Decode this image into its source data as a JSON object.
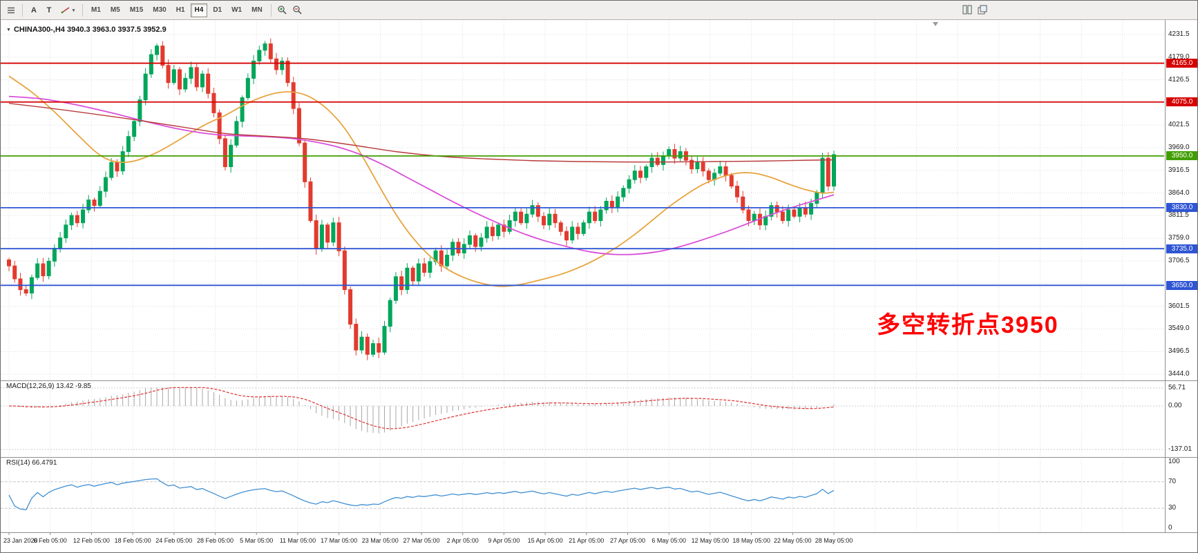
{
  "toolbar": {
    "text_tool_a": "A",
    "text_tool_t": "T",
    "timeframes": [
      "M1",
      "M5",
      "M15",
      "M30",
      "H1",
      "H4",
      "D1",
      "W1",
      "MN"
    ],
    "active_timeframe": "H4"
  },
  "chart": {
    "symbol": "CHINA300-,H4",
    "ohlc": "3940.3 3963.0 3937.5 3952.9",
    "annotation": "多空转折点3950",
    "annotation_color": "#ff0000"
  },
  "indicators": {
    "macd_label": "MACD(12,26,9) 13.42 -9.85",
    "rsi_label": "RSI(14) 66.4791",
    "macd_axis": [
      "56.71",
      "0.00",
      "-137.01"
    ],
    "rsi_axis": [
      "100",
      "70",
      "30",
      "0"
    ]
  },
  "levels": [
    {
      "price": 4165.0,
      "label": "4165.0",
      "color": "#d60000"
    },
    {
      "price": 4075.0,
      "label": "4075.0",
      "color": "#d60000"
    },
    {
      "price": 3950.0,
      "label": "3950.0",
      "color": "#419e00"
    },
    {
      "price": 3830.0,
      "label": "3830.0",
      "color": "#2f55d4"
    },
    {
      "price": 3735.0,
      "label": "3735.0",
      "color": "#2f55d4"
    },
    {
      "price": 3650.0,
      "label": "3650.0",
      "color": "#2f55d4"
    }
  ],
  "y_axis": {
    "max": 4231.5,
    "step": 52.5,
    "count": 16
  },
  "chart_data": {
    "type": "candlestick",
    "symbol": "CHINA300",
    "timeframe": "H4",
    "dates": [
      "23 Jan 2020",
      "6 Feb 05:00",
      "12 Feb 05:00",
      "18 Feb 05:00",
      "24 Feb 05:00",
      "28 Feb 05:00",
      "5 Mar 05:00",
      "11 Mar 05:00",
      "17 Mar 05:00",
      "23 Mar 05:00",
      "27 Mar 05:00",
      "2 Apr 05:00",
      "9 Apr 05:00",
      "15 Apr 05:00",
      "21 Apr 05:00",
      "27 Apr 05:00",
      "6 May 05:00",
      "12 May 05:00",
      "18 May 05:00",
      "22 May 05:00",
      "28 May 05:00"
    ],
    "closes": [
      3695,
      3665,
      3640,
      3632,
      3668,
      3700,
      3672,
      3706,
      3736,
      3760,
      3790,
      3812,
      3795,
      3825,
      3848,
      3835,
      3868,
      3900,
      3935,
      3915,
      3960,
      3995,
      4030,
      4080,
      4140,
      4185,
      4205,
      4160,
      4120,
      4150,
      4105,
      4130,
      4155,
      4110,
      4140,
      4095,
      4050,
      3990,
      3925,
      3975,
      4030,
      4085,
      4130,
      4170,
      4195,
      4210,
      4175,
      4150,
      4170,
      4120,
      4060,
      3980,
      3890,
      3800,
      3735,
      3790,
      3750,
      3795,
      3730,
      3640,
      3560,
      3500,
      3530,
      3490,
      3515,
      3495,
      3555,
      3615,
      3670,
      3640,
      3690,
      3660,
      3700,
      3680,
      3705,
      3730,
      3695,
      3720,
      3750,
      3725,
      3745,
      3765,
      3740,
      3760,
      3785,
      3765,
      3790,
      3775,
      3800,
      3820,
      3795,
      3815,
      3835,
      3810,
      3790,
      3815,
      3795,
      3775,
      3755,
      3785,
      3770,
      3795,
      3820,
      3800,
      3825,
      3845,
      3830,
      3855,
      3875,
      3895,
      3915,
      3900,
      3925,
      3945,
      3930,
      3950,
      3965,
      3945,
      3960,
      3940,
      3920,
      3935,
      3915,
      3895,
      3910,
      3925,
      3905,
      3880,
      3855,
      3825,
      3800,
      3815,
      3790,
      3810,
      3835,
      3820,
      3800,
      3825,
      3810,
      3830,
      3815,
      3840,
      3865,
      3945,
      3880,
      3953
    ],
    "ma_orange": [
      [
        0,
        4135
      ],
      [
        4,
        4098
      ],
      [
        8,
        4052
      ],
      [
        12,
        4000
      ],
      [
        15,
        3962
      ],
      [
        17,
        3944
      ],
      [
        19,
        3936
      ],
      [
        21,
        3936
      ],
      [
        23,
        3942
      ],
      [
        26,
        3958
      ],
      [
        29,
        3980
      ],
      [
        32,
        4004
      ],
      [
        35,
        4026
      ],
      [
        38,
        4044
      ],
      [
        41,
        4066
      ],
      [
        44,
        4084
      ],
      [
        47,
        4096
      ],
      [
        50,
        4098
      ],
      [
        53,
        4086
      ],
      [
        56,
        4058
      ],
      [
        59,
        4014
      ],
      [
        62,
        3952
      ],
      [
        65,
        3882
      ],
      [
        68,
        3815
      ],
      [
        71,
        3760
      ],
      [
        74,
        3718
      ],
      [
        77,
        3688
      ],
      [
        80,
        3668
      ],
      [
        83,
        3655
      ],
      [
        86,
        3648
      ],
      [
        89,
        3650
      ],
      [
        92,
        3658
      ],
      [
        95,
        3668
      ],
      [
        98,
        3680
      ],
      [
        101,
        3696
      ],
      [
        104,
        3716
      ],
      [
        107,
        3740
      ],
      [
        110,
        3768
      ],
      [
        113,
        3800
      ],
      [
        116,
        3832
      ],
      [
        119,
        3860
      ],
      [
        122,
        3884
      ],
      [
        125,
        3900
      ],
      [
        128,
        3910
      ],
      [
        131,
        3910
      ],
      [
        134,
        3900
      ],
      [
        137,
        3885
      ],
      [
        140,
        3872
      ],
      [
        143,
        3864
      ],
      [
        145,
        3866
      ]
    ],
    "ma_magenta": [
      [
        0,
        4088
      ],
      [
        6,
        4082
      ],
      [
        12,
        4068
      ],
      [
        18,
        4050
      ],
      [
        24,
        4030
      ],
      [
        30,
        4012
      ],
      [
        36,
        4000
      ],
      [
        42,
        3996
      ],
      [
        46,
        3994
      ],
      [
        50,
        3990
      ],
      [
        54,
        3982
      ],
      [
        58,
        3970
      ],
      [
        62,
        3952
      ],
      [
        66,
        3928
      ],
      [
        70,
        3900
      ],
      [
        74,
        3872
      ],
      [
        78,
        3844
      ],
      [
        82,
        3818
      ],
      [
        86,
        3794
      ],
      [
        90,
        3772
      ],
      [
        94,
        3754
      ],
      [
        98,
        3740
      ],
      [
        102,
        3728
      ],
      [
        106,
        3722
      ],
      [
        110,
        3722
      ],
      [
        114,
        3728
      ],
      [
        118,
        3740
      ],
      [
        122,
        3756
      ],
      [
        126,
        3774
      ],
      [
        130,
        3794
      ],
      [
        134,
        3814
      ],
      [
        138,
        3832
      ],
      [
        142,
        3848
      ],
      [
        145,
        3860
      ]
    ],
    "ma_red": [
      [
        0,
        4072
      ],
      [
        10,
        4056
      ],
      [
        20,
        4038
      ],
      [
        30,
        4018
      ],
      [
        38,
        4002
      ],
      [
        45,
        3996
      ],
      [
        52,
        3990
      ],
      [
        60,
        3976
      ],
      [
        68,
        3960
      ],
      [
        76,
        3949
      ],
      [
        84,
        3943
      ],
      [
        92,
        3939
      ],
      [
        100,
        3937
      ],
      [
        108,
        3936
      ],
      [
        116,
        3936
      ],
      [
        124,
        3937
      ],
      [
        132,
        3938
      ],
      [
        140,
        3940
      ],
      [
        145,
        3941
      ]
    ],
    "colors": {
      "up": "#00a65a",
      "down": "#e23b2e",
      "ma_orange": "#e8a33d",
      "ma_magenta": "#d94fd9",
      "ma_red": "#b93a3a",
      "macd_hist": "#a6a6a6",
      "macd_signal": "#e03030",
      "rsi": "#3f8fd2",
      "grid": "#dcdcdc"
    }
  }
}
